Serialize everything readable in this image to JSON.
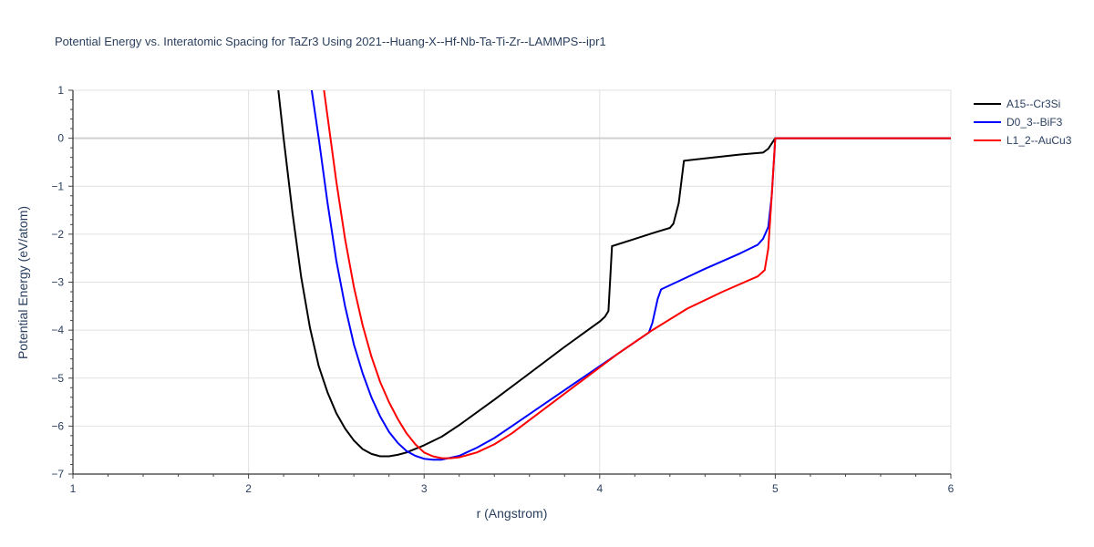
{
  "chart_data": {
    "type": "line",
    "title": "Potential Energy vs. Interatomic Spacing for TaZr3 Using 2021--Huang-X--Hf-Nb-Ta-Ti-Zr--LAMMPS--ipr1",
    "xlabel": "r (Angstrom)",
    "ylabel": "Potential Energy (eV/atom)",
    "xlim": [
      1,
      6
    ],
    "ylim": [
      -7,
      1
    ],
    "xticks": [
      1,
      2,
      3,
      4,
      5,
      6
    ],
    "xtick_labels": [
      "1",
      "2",
      "3",
      "4",
      "5",
      "6"
    ],
    "yticks": [
      1,
      0,
      -1,
      -2,
      -3,
      -4,
      -5,
      -6,
      -7
    ],
    "ytick_labels": [
      "1",
      "0",
      "−1",
      "−2",
      "−3",
      "−4",
      "−5",
      "−6",
      "−7"
    ],
    "grid": true,
    "legend_position": "top-right",
    "series": [
      {
        "name": "A15--Cr3Si",
        "color": "#000000",
        "x": [
          2.17,
          2.2,
          2.25,
          2.3,
          2.35,
          2.4,
          2.45,
          2.5,
          2.55,
          2.6,
          2.65,
          2.7,
          2.75,
          2.8,
          2.85,
          2.9,
          3.0,
          3.1,
          3.2,
          3.4,
          3.6,
          3.8,
          4.0,
          4.03,
          4.05,
          4.07,
          4.2,
          4.3,
          4.4,
          4.42,
          4.45,
          4.48,
          4.6,
          4.8,
          4.93,
          4.96,
          5.0,
          5.5,
          6.0
        ],
        "y": [
          1.0,
          0.0,
          -1.55,
          -2.9,
          -3.95,
          -4.75,
          -5.3,
          -5.73,
          -6.05,
          -6.3,
          -6.48,
          -6.58,
          -6.63,
          -6.63,
          -6.6,
          -6.55,
          -6.4,
          -6.22,
          -5.98,
          -5.45,
          -4.9,
          -4.35,
          -3.82,
          -3.72,
          -3.6,
          -2.25,
          -2.1,
          -1.98,
          -1.87,
          -1.78,
          -1.35,
          -0.47,
          -0.42,
          -0.34,
          -0.3,
          -0.22,
          0.0,
          0.0,
          0.0
        ]
      },
      {
        "name": "D0_3--BiF3",
        "color": "#0000ff",
        "x": [
          2.36,
          2.4,
          2.45,
          2.5,
          2.55,
          2.6,
          2.65,
          2.7,
          2.75,
          2.8,
          2.85,
          2.9,
          2.95,
          3.0,
          3.05,
          3.1,
          3.2,
          3.3,
          3.4,
          3.5,
          3.7,
          3.9,
          4.1,
          4.28,
          4.3,
          4.33,
          4.35,
          4.45,
          4.6,
          4.8,
          4.9,
          4.93,
          4.96,
          4.98,
          5.0,
          5.5,
          6.0
        ],
        "y": [
          1.0,
          0.0,
          -1.35,
          -2.55,
          -3.5,
          -4.3,
          -4.9,
          -5.4,
          -5.8,
          -6.12,
          -6.35,
          -6.52,
          -6.62,
          -6.68,
          -6.7,
          -6.7,
          -6.62,
          -6.45,
          -6.25,
          -6.0,
          -5.5,
          -5.0,
          -4.5,
          -4.05,
          -3.85,
          -3.35,
          -3.15,
          -2.98,
          -2.72,
          -2.4,
          -2.22,
          -2.1,
          -1.85,
          -1.2,
          0.0,
          0.0,
          0.0
        ]
      },
      {
        "name": "L1_2--AuCu3",
        "color": "#ff0000",
        "x": [
          2.43,
          2.5,
          2.55,
          2.6,
          2.65,
          2.7,
          2.75,
          2.8,
          2.85,
          2.9,
          2.95,
          3.0,
          3.05,
          3.1,
          3.15,
          3.2,
          3.3,
          3.4,
          3.5,
          3.7,
          3.9,
          4.1,
          4.3,
          4.5,
          4.7,
          4.9,
          4.94,
          4.96,
          4.98,
          5.0,
          5.5,
          6.0
        ],
        "y": [
          1.0,
          -0.9,
          -2.1,
          -3.1,
          -3.9,
          -4.55,
          -5.08,
          -5.5,
          -5.85,
          -6.15,
          -6.38,
          -6.55,
          -6.63,
          -6.67,
          -6.67,
          -6.65,
          -6.55,
          -6.38,
          -6.15,
          -5.6,
          -5.05,
          -4.5,
          -4.0,
          -3.55,
          -3.2,
          -2.88,
          -2.75,
          -2.3,
          -1.2,
          0.0,
          0.0,
          0.0
        ]
      }
    ]
  }
}
